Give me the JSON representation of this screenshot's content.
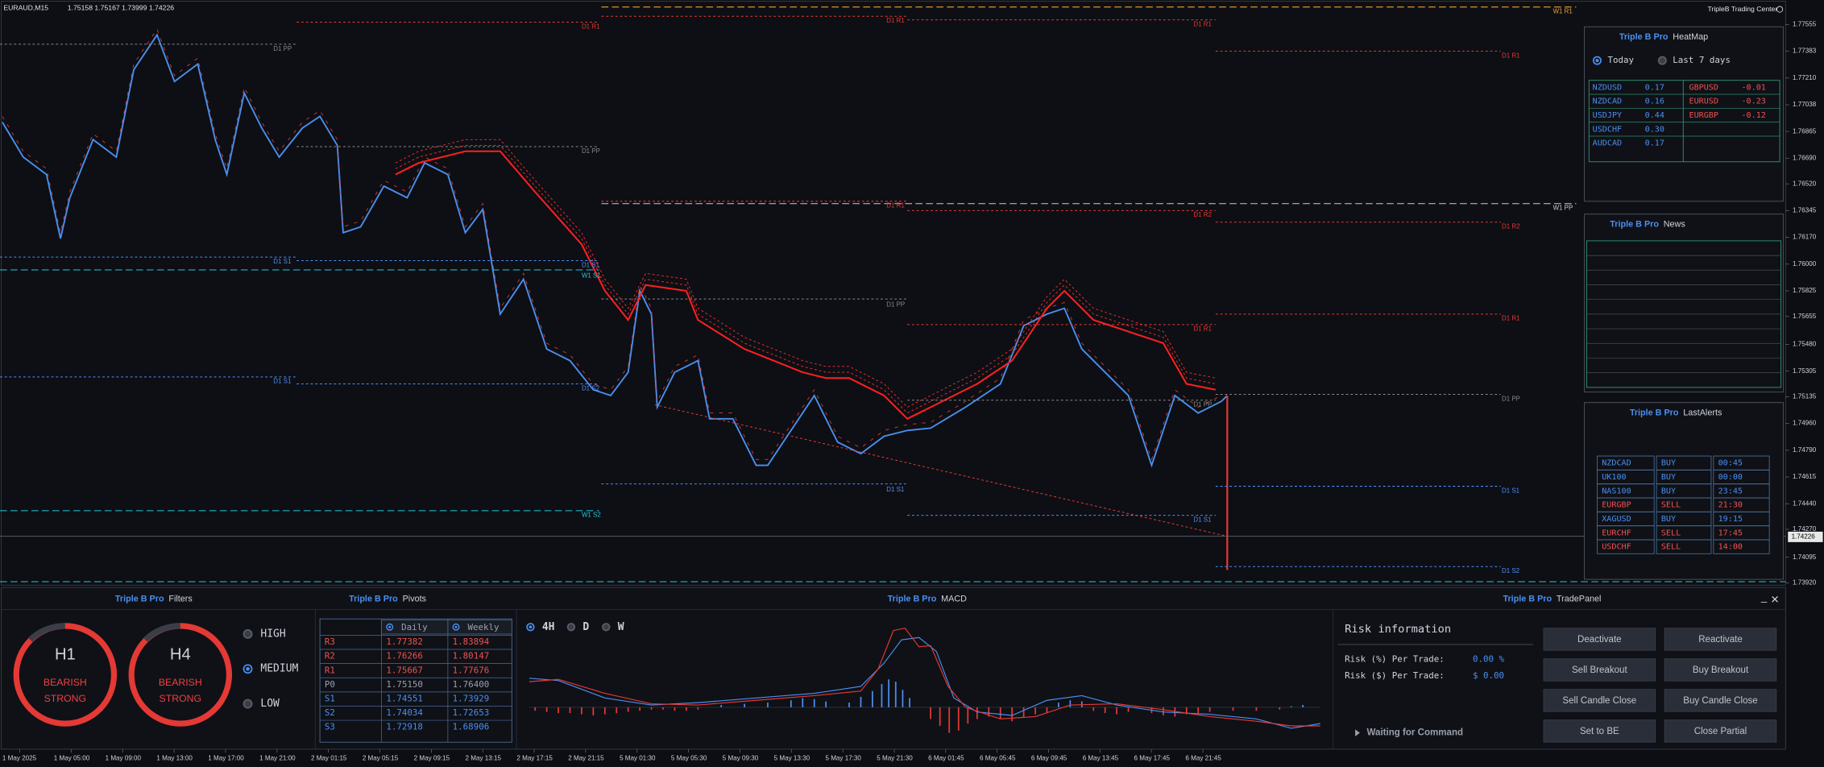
{
  "header": {
    "symbol": "EURAUD,M15",
    "ohlc": "1.75158 1.75167 1.73999 1.74226",
    "brand": "TripleB Trading Center"
  },
  "price_axis": [
    "1.77555",
    "1.77383",
    "1.77210",
    "1.77038",
    "1.76865",
    "1.76690",
    "1.76520",
    "1.76345",
    "1.76170",
    "1.76000",
    "1.75825",
    "1.75655",
    "1.75480",
    "1.75305",
    "1.75135",
    "1.74960",
    "1.74790",
    "1.74615",
    "1.74440",
    "1.74270",
    "1.74095",
    "1.73920"
  ],
  "current_price": "1.74226",
  "time_axis": [
    "1 May 2025",
    "1 May 05:00",
    "1 May 09:00",
    "1 May 13:00",
    "1 May 17:00",
    "1 May 21:00",
    "2 May 01:15",
    "2 May 05:15",
    "2 May 09:15",
    "2 May 13:15",
    "2 May 17:15",
    "2 May 21:15",
    "5 May 01:30",
    "5 May 05:30",
    "5 May 09:30",
    "5 May 13:30",
    "5 May 17:30",
    "5 May 21:30",
    "6 May 01:45",
    "6 May 05:45",
    "6 May 09:45",
    "6 May 13:45",
    "6 May 17:45",
    "6 May 21:45"
  ],
  "levels": [
    "W1 R1",
    "D1 R1",
    "D1 R1",
    "D1 R1",
    "D1 R1",
    "D1 PP",
    "D1 PP",
    "W1 PP",
    "D1 R1",
    "D1 R2",
    "D1 R2",
    "D1 S1",
    "D1 S1",
    "W1 S1",
    "D1 PP",
    "D1 R1",
    "D1 R1",
    "D1 S1",
    "D1 S2",
    "D1 PP",
    "D1 PP",
    "D1 S1",
    "D1 S1",
    "W1 S2",
    "D1 S1",
    "D1 S2"
  ],
  "heatmap": {
    "brand": "Triple B Pro",
    "title": "HeatMap",
    "options": [
      "Today",
      "Last 7 days"
    ],
    "rows": [
      [
        "NZDUSD",
        "0.17",
        "GBPUSD",
        "-0.01"
      ],
      [
        "NZDCAD",
        "0.16",
        "EURUSD",
        "-0.23"
      ],
      [
        "USDJPY",
        "0.44",
        "EURGBP",
        "-0.12"
      ],
      [
        "USDCHF",
        "0.30"
      ],
      [
        "AUDCAD",
        "0.17"
      ]
    ]
  },
  "news": {
    "brand": "Triple B Pro",
    "title": "News"
  },
  "alerts": {
    "brand": "Triple B Pro",
    "title": "LastAlerts",
    "rows": [
      [
        "NZDCAD",
        "BUY",
        "00:45"
      ],
      [
        "UK100",
        "BUY",
        "00:00"
      ],
      [
        "NAS100",
        "BUY",
        "23:45"
      ],
      [
        "EURGBP",
        "SELL",
        "21:30"
      ],
      [
        "XAGUSD",
        "BUY",
        "19:15"
      ],
      [
        "EURCHF",
        "SELL",
        "17:45"
      ],
      [
        "USDCHF",
        "SELL",
        "14:00"
      ]
    ]
  },
  "filters": {
    "brand": "Triple B Pro",
    "title": "Filters",
    "gauges": [
      {
        "tf": "H1",
        "state": "BEARISH",
        "strength": "STRONG"
      },
      {
        "tf": "H4",
        "state": "BEARISH",
        "strength": "STRONG"
      }
    ],
    "impact": [
      "HIGH",
      "MEDIUM",
      "LOW"
    ]
  },
  "pivots": {
    "brand": "Triple B Pro",
    "title": "Pivots",
    "columns": [
      "Daily",
      "Weekly"
    ],
    "rows": [
      [
        "R3",
        "1.77382",
        "1.83894"
      ],
      [
        "R2",
        "1.76266",
        "1.80147"
      ],
      [
        "R1",
        "1.75667",
        "1.77676"
      ],
      [
        "P0",
        "1.75150",
        "1.76400"
      ],
      [
        "S1",
        "1.74551",
        "1.73929"
      ],
      [
        "S2",
        "1.74034",
        "1.72653"
      ],
      [
        "S3",
        "1.72918",
        "1.68906"
      ]
    ]
  },
  "macd": {
    "brand": "Triple B Pro",
    "title": "MACD",
    "timeframes": [
      "4H",
      "D",
      "W"
    ]
  },
  "trade_panel": {
    "brand": "Triple B Pro",
    "title": "TradePanel",
    "risk_title": "Risk information",
    "risk_pct_label": "Risk (%) Per Trade:",
    "risk_pct": "0.00 %",
    "risk_usd_label": "Risk ($) Per Trade:",
    "risk_usd": "$ 0.00",
    "status": "Waiting for Command",
    "buttons": [
      "Deactivate",
      "Reactivate",
      "Sell Breakout",
      "Buy Breakout",
      "Sell Candle Close",
      "Buy Candle Close",
      "Set to BE",
      "Close Partial"
    ]
  }
}
